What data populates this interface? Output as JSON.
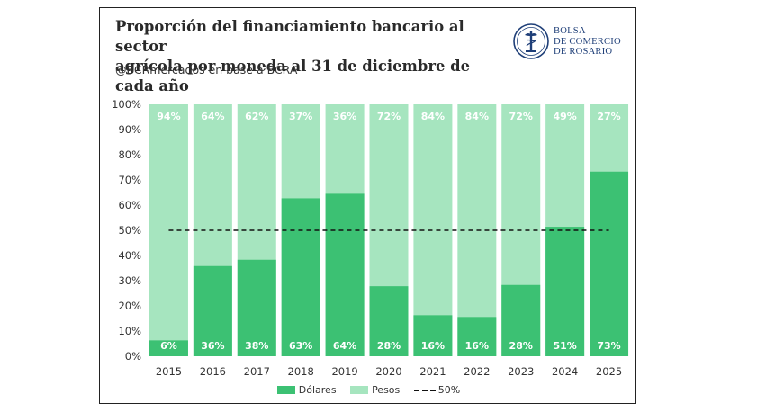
{
  "header": {
    "title_line1": "Proporción del financiamiento bancario al sector",
    "title_line2": "agrícola por moneda al 31 de diciembre de cada año",
    "subtitle": "@BCRmercados  en base a BCRA"
  },
  "logo": {
    "line1": "BOLSA",
    "line2": "DE COMERCIO",
    "line3": "DE ROSARIO",
    "icon": "bcr-seal-icon"
  },
  "colors": {
    "dolares": "#3cc173",
    "pesos": "#a6e5bf",
    "reference": "#111111",
    "label": "#ffffff"
  },
  "chart_data": {
    "type": "bar",
    "stacked": true,
    "categories": [
      "2015",
      "2016",
      "2017",
      "2018",
      "2019",
      "2020",
      "2021",
      "2022",
      "2023",
      "2024",
      "2025"
    ],
    "series": [
      {
        "name": "Dólares",
        "values": [
          6,
          36,
          38,
          63,
          64,
          28,
          16,
          16,
          28,
          51,
          73
        ]
      },
      {
        "name": "Pesos",
        "values": [
          94,
          64,
          62,
          37,
          36,
          72,
          84,
          84,
          72,
          49,
          27
        ]
      }
    ],
    "display_values": {
      "Dólares": [
        6,
        36,
        38,
        63,
        64,
        28,
        16,
        16,
        28,
        51,
        73
      ],
      "Pesos": [
        94,
        64,
        62,
        37,
        36,
        72,
        84,
        84,
        72,
        49,
        27
      ]
    },
    "bar_heights_pct": {
      "Dólares": [
        6.3,
        35.8,
        38.3,
        62.7,
        64.5,
        27.8,
        16.3,
        15.6,
        28.3,
        51.4,
        73.3
      ]
    },
    "reference_line": {
      "name": "50%",
      "value": 50,
      "style": "dashed"
    },
    "ylim": [
      0,
      100
    ],
    "yticks": [
      0,
      10,
      20,
      30,
      40,
      50,
      60,
      70,
      80,
      90,
      100
    ],
    "ytick_suffix": "%",
    "xlabel": "",
    "ylabel": "",
    "grid": false,
    "legend_position": "bottom"
  }
}
